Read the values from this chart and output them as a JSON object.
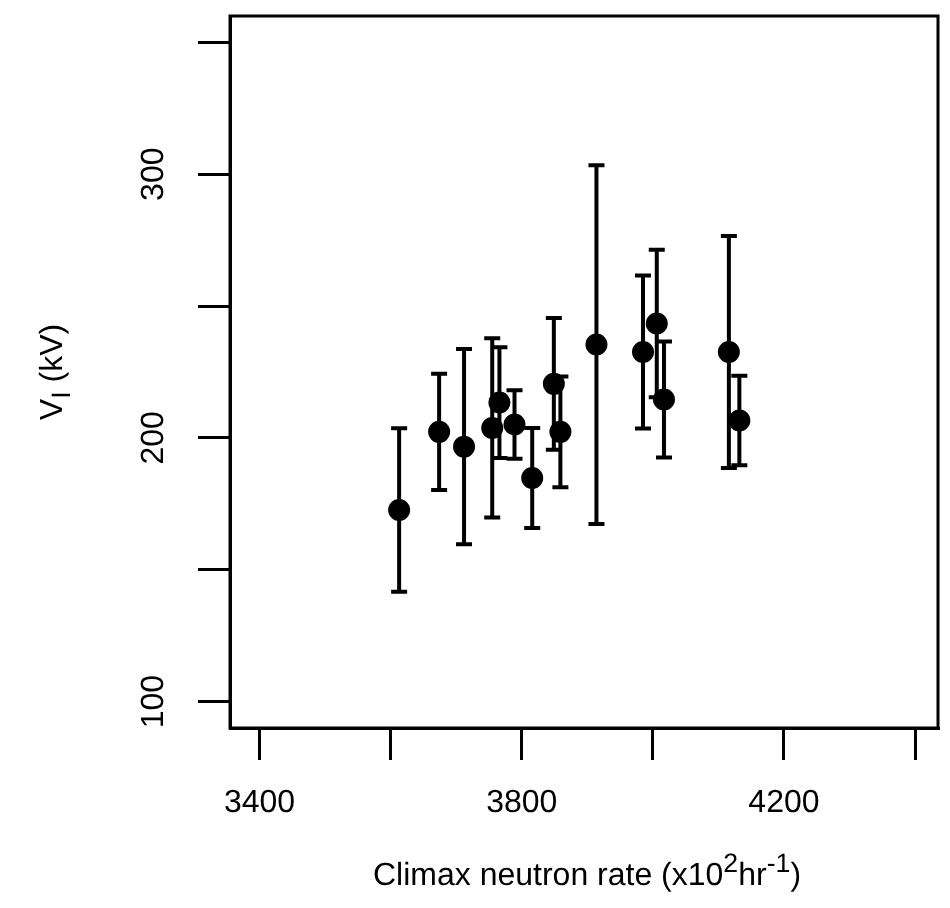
{
  "chart_data": {
    "type": "scatter",
    "xlabel": "Climax neutron rate (x10$^{2}$hr$^{-1}$)",
    "ylabel": "V$_{I}$ (kV)",
    "x": [
      3613,
      3674,
      3712,
      3755,
      3766,
      3789,
      3816,
      3849,
      3859,
      3914,
      3985,
      4006,
      4017,
      4116,
      4132
    ],
    "series": [
      {
        "color": "#000000",
        "values": [
          172.7,
          202.3,
          196.7,
          203.8,
          213.4,
          205.1,
          184.8,
          220.5,
          202.3,
          235.4,
          232.6,
          243.4,
          214.6,
          232.6,
          206.6
        ],
        "errors": [
          31,
          22,
          37,
          34,
          21,
          13,
          19,
          25,
          21,
          68,
          29,
          28,
          22,
          44,
          17
        ]
      }
    ],
    "xlim": [
      3355,
      4435
    ],
    "ylim": [
      90,
      360
    ],
    "xticks": [
      3400,
      {
        "value": 3600,
        "label": null
      },
      3800,
      {
        "value": 4000,
        "label": null
      },
      4200,
      {
        "value": 4400,
        "label": null
      }
    ],
    "yticks": [
      100,
      {
        "value": 150,
        "label": null
      },
      200,
      {
        "value": 250,
        "label": null
      },
      300,
      {
        "value": 350,
        "label": null
      }
    ],
    "marker": "circle",
    "grid": false,
    "legend": false
  }
}
